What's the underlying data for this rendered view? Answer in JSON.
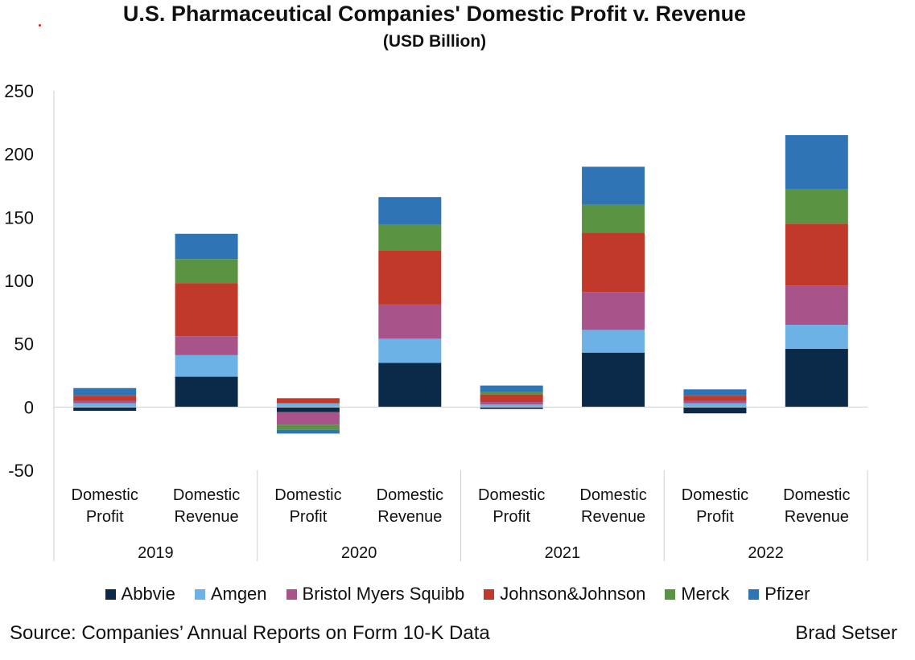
{
  "title": "U.S. Pharmaceutical Companies' Domestic Profit v. Revenue",
  "subtitle": "(USD Billion)",
  "source": "Source: Companies’ Annual Reports on Form 10-K Data",
  "author": "Brad Setser",
  "chart_data": {
    "type": "bar",
    "stacked": true,
    "title": "U.S. Pharmaceutical Companies' Domestic Profit v. Revenue",
    "subtitle": "(USD Billion)",
    "ylim": [
      -50,
      250
    ],
    "yticks": [
      -50,
      0,
      50,
      100,
      150,
      200,
      250
    ],
    "grid": false,
    "legend_position": "bottom",
    "groups": [
      "2019",
      "2020",
      "2021",
      "2022"
    ],
    "categories": [
      "Domestic Profit",
      "Domestic Revenue",
      "Domestic Profit",
      "Domestic Revenue",
      "Domestic Profit",
      "Domestic Revenue",
      "Domestic Profit",
      "Domestic Revenue"
    ],
    "series": [
      {
        "name": "Abbvie",
        "color": "#0b2a4a",
        "values": [
          -3,
          24,
          -4,
          35,
          -1.5,
          43,
          -5,
          46
        ]
      },
      {
        "name": "Amgen",
        "color": "#6cb2e6",
        "values": [
          3,
          17,
          3,
          19,
          2,
          18,
          3,
          19
        ]
      },
      {
        "name": "Bristol Myers Squibb",
        "color": "#a8538a",
        "values": [
          2,
          15,
          -10,
          27,
          2,
          30,
          2,
          31
        ]
      },
      {
        "name": "Johnson&Johnson",
        "color": "#c0392b",
        "values": [
          4,
          42,
          4,
          43,
          6,
          47,
          4,
          49
        ]
      },
      {
        "name": "Merck",
        "color": "#5a9443",
        "values": [
          0,
          19,
          -4,
          20,
          2,
          22,
          0,
          27
        ]
      },
      {
        "name": "Pfizer",
        "color": "#2f74b5",
        "values": [
          6,
          20,
          -3,
          22,
          5,
          30,
          5,
          43
        ]
      }
    ]
  }
}
